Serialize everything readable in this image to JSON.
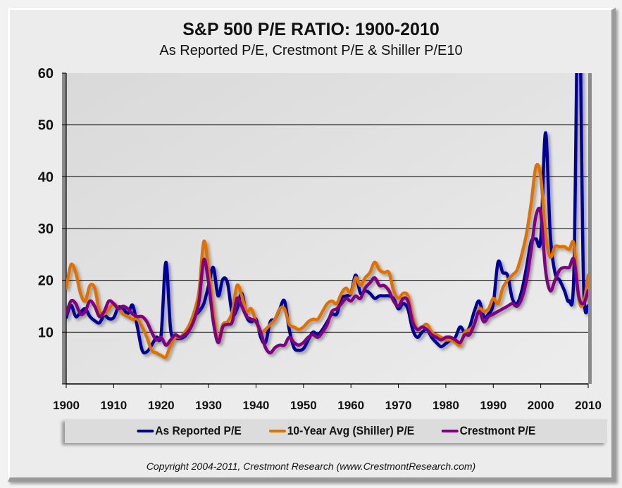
{
  "chart_data": {
    "type": "line",
    "title": "S&P 500 P/E RATIO: 1900-2010",
    "subtitle": "As Reported P/E, Crestmont P/E & Shiller P/E10",
    "xlabel": "",
    "ylabel": "",
    "xlim": [
      1900,
      2010
    ],
    "ylim": [
      0,
      60
    ],
    "grid": true,
    "legend": "bottom",
    "x_ticks": [
      "1900",
      "1910",
      "1920",
      "1930",
      "1940",
      "1950",
      "1960",
      "1970",
      "1980",
      "1990",
      "2000",
      "2010"
    ],
    "y_ticks": [
      "10",
      "20",
      "30",
      "40",
      "50",
      "60"
    ],
    "x": [
      1900,
      1901,
      1902,
      1903,
      1904,
      1905,
      1906,
      1907,
      1908,
      1909,
      1910,
      1911,
      1912,
      1913,
      1914,
      1915,
      1916,
      1917,
      1918,
      1919,
      1920,
      1921,
      1922,
      1923,
      1924,
      1925,
      1926,
      1927,
      1928,
      1929,
      1930,
      1931,
      1932,
      1933,
      1934,
      1935,
      1936,
      1937,
      1938,
      1939,
      1940,
      1941,
      1942,
      1943,
      1944,
      1945,
      1946,
      1947,
      1948,
      1949,
      1950,
      1951,
      1952,
      1953,
      1954,
      1955,
      1956,
      1957,
      1958,
      1959,
      1960,
      1961,
      1962,
      1963,
      1964,
      1965,
      1966,
      1967,
      1968,
      1969,
      1970,
      1971,
      1972,
      1973,
      1974,
      1975,
      1976,
      1977,
      1978,
      1979,
      1980,
      1981,
      1982,
      1983,
      1984,
      1985,
      1986,
      1987,
      1988,
      1989,
      1990,
      1991,
      1992,
      1993,
      1994,
      1995,
      1996,
      1997,
      1998,
      1999,
      2000,
      2001,
      2002,
      2003,
      2004,
      2005,
      2006,
      2007,
      2008,
      2009,
      2010
    ],
    "series": [
      {
        "name": "As Reported P/E",
        "color": "#000099",
        "values": [
          12.8,
          15.2,
          13.0,
          13.8,
          14.5,
          13.0,
          12.2,
          11.8,
          13.2,
          12.6,
          12.8,
          14.8,
          14.5,
          13.6,
          15.2,
          11.0,
          6.5,
          6.2,
          7.5,
          9.0,
          9.5,
          23.5,
          10.5,
          9.0,
          8.8,
          9.2,
          10.5,
          13.0,
          14.0,
          15.5,
          19.0,
          22.5,
          17.0,
          20.2,
          19.5,
          13.5,
          14.5,
          17.5,
          13.0,
          12.0,
          12.5,
          9.0,
          8.0,
          12.0,
          12.5,
          14.5,
          16.0,
          10.5,
          7.0,
          6.5,
          6.8,
          8.5,
          10.0,
          9.5,
          10.5,
          12.0,
          13.5,
          13.5,
          16.5,
          17.0,
          17.5,
          21.0,
          17.5,
          18.0,
          17.5,
          16.5,
          17.0,
          17.0,
          17.0,
          16.5,
          14.5,
          15.5,
          14.5,
          10.5,
          9.0,
          10.0,
          10.5,
          9.0,
          8.0,
          7.2,
          7.8,
          8.5,
          9.0,
          11.0,
          10.0,
          11.0,
          14.0,
          16.0,
          13.0,
          13.5,
          15.5,
          23.5,
          21.5,
          21.0,
          16.5,
          15.5,
          18.0,
          22.5,
          27.5,
          28.0,
          28.0,
          48.5,
          29.0,
          21.5,
          20.0,
          18.0,
          16.0,
          22.0,
          80.0,
          20.0,
          15.0
        ]
      },
      {
        "name": "10-Year Avg (Shiller) P/E",
        "color": "#E07000",
        "values": [
          18.5,
          23.0,
          21.5,
          17.5,
          16.0,
          19.0,
          18.5,
          14.0,
          13.5,
          14.5,
          15.5,
          14.5,
          13.5,
          13.0,
          12.5,
          12.5,
          11.0,
          9.0,
          6.5,
          6.0,
          5.5,
          5.2,
          7.5,
          9.0,
          9.0,
          10.0,
          11.5,
          14.0,
          18.0,
          27.5,
          22.0,
          14.0,
          8.5,
          11.5,
          12.0,
          14.0,
          19.0,
          17.0,
          14.0,
          14.5,
          12.0,
          10.0,
          10.5,
          11.5,
          12.5,
          14.5,
          14.5,
          11.5,
          11.0,
          10.5,
          11.0,
          12.0,
          12.5,
          12.5,
          14.0,
          15.5,
          16.0,
          15.5,
          17.5,
          18.5,
          17.5,
          20.5,
          19.0,
          20.5,
          21.5,
          23.5,
          22.0,
          21.5,
          21.5,
          18.0,
          16.5,
          17.5,
          17.0,
          13.0,
          10.5,
          11.0,
          11.5,
          10.0,
          9.5,
          9.0,
          8.5,
          8.5,
          8.0,
          7.5,
          10.0,
          10.5,
          11.5,
          14.5,
          14.0,
          14.5,
          16.5,
          15.5,
          18.5,
          20.0,
          21.0,
          22.0,
          25.0,
          29.0,
          35.0,
          42.0,
          40.0,
          29.0,
          24.5,
          26.5,
          26.5,
          26.5,
          26.0,
          27.0,
          16.5,
          15.5,
          21.0
        ]
      },
      {
        "name": "Crestmont P/E",
        "color": "#800080",
        "values": [
          13.5,
          16.0,
          15.5,
          13.5,
          14.0,
          16.0,
          15.0,
          13.0,
          14.0,
          16.0,
          15.5,
          14.5,
          15.0,
          14.5,
          13.5,
          13.0,
          13.0,
          12.0,
          10.0,
          8.5,
          9.0,
          7.5,
          8.5,
          9.5,
          9.0,
          9.5,
          10.5,
          12.5,
          16.0,
          24.0,
          19.5,
          12.0,
          8.0,
          11.0,
          11.5,
          12.0,
          16.5,
          15.0,
          13.0,
          12.5,
          12.0,
          10.0,
          7.0,
          6.0,
          7.0,
          7.5,
          7.5,
          9.0,
          8.0,
          7.5,
          8.0,
          9.0,
          9.5,
          9.0,
          10.0,
          11.5,
          14.0,
          14.5,
          15.5,
          16.5,
          16.0,
          17.0,
          16.5,
          18.5,
          19.5,
          20.5,
          19.0,
          19.0,
          18.0,
          16.0,
          15.0,
          16.5,
          16.0,
          12.0,
          10.5,
          11.0,
          10.5,
          9.5,
          9.0,
          8.5,
          9.0,
          9.0,
          8.5,
          8.0,
          9.5,
          9.5,
          11.5,
          14.0,
          12.0,
          13.0,
          13.5,
          14.0,
          14.5,
          15.0,
          15.5,
          15.0,
          16.5,
          20.0,
          26.0,
          32.5,
          33.0,
          22.0,
          18.0,
          20.0,
          22.0,
          22.5,
          22.5,
          24.0,
          17.0,
          15.5,
          18.0
        ]
      }
    ]
  },
  "footer": {
    "copyright": "Copyright 2004-2011,  Crestmont Research (www.CrestmontResearch.com)"
  }
}
